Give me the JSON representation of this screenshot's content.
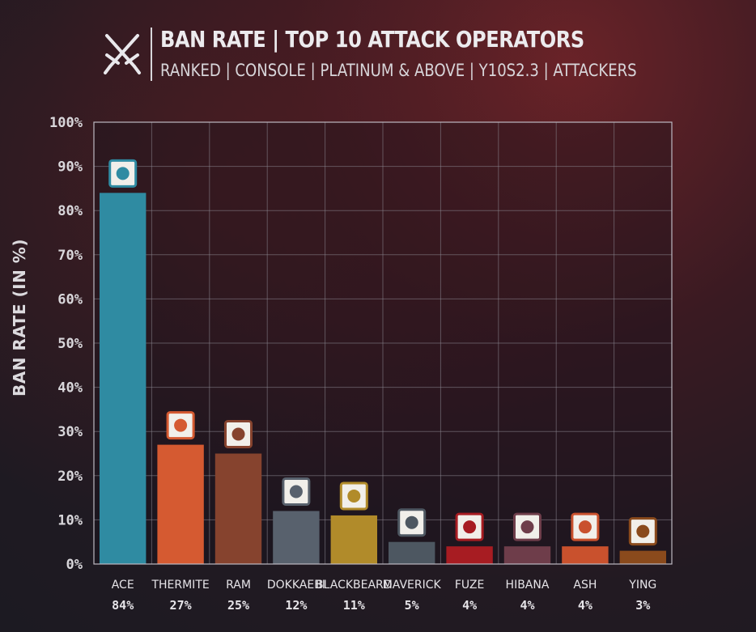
{
  "header": {
    "title": "BAN RATE | TOP 10 ATTACK OPERATORS",
    "subtitle": "RANKED | CONSOLE | PLATINUM & ABOVE | Y10S2.3 | ATTACKERS",
    "icon": "crossed-swords-icon"
  },
  "chart_data": {
    "type": "bar",
    "title": "BAN RATE | TOP 10 ATTACK OPERATORS",
    "subtitle": "RANKED | CONSOLE | PLATINUM & ABOVE | Y10S2.3 | ATTACKERS",
    "ylabel": "BAN RATE (IN %)",
    "xlabel": "",
    "ylim": [
      0,
      100
    ],
    "yticks": [
      "0%",
      "10%",
      "20%",
      "30%",
      "40%",
      "50%",
      "60%",
      "70%",
      "80%",
      "90%",
      "100%"
    ],
    "grid": true,
    "categories": [
      "ACE",
      "THERMITE",
      "RAM",
      "DOKKAEBI",
      "BLACKBEARD",
      "MAVERICK",
      "FUZE",
      "HIBANA",
      "ASH",
      "YING"
    ],
    "values": [
      84,
      27,
      25,
      12,
      11,
      5,
      4,
      4,
      4,
      3
    ],
    "value_labels": [
      "84%",
      "27%",
      "25%",
      "12%",
      "11%",
      "5%",
      "4%",
      "4%",
      "4%",
      "3%"
    ],
    "colors": [
      "#2f8ba2",
      "#d55a31",
      "#86432e",
      "#58616d",
      "#b18b2a",
      "#4d5761",
      "#a71c22",
      "#6e3d4a",
      "#c9512d",
      "#8a4a1c"
    ]
  }
}
